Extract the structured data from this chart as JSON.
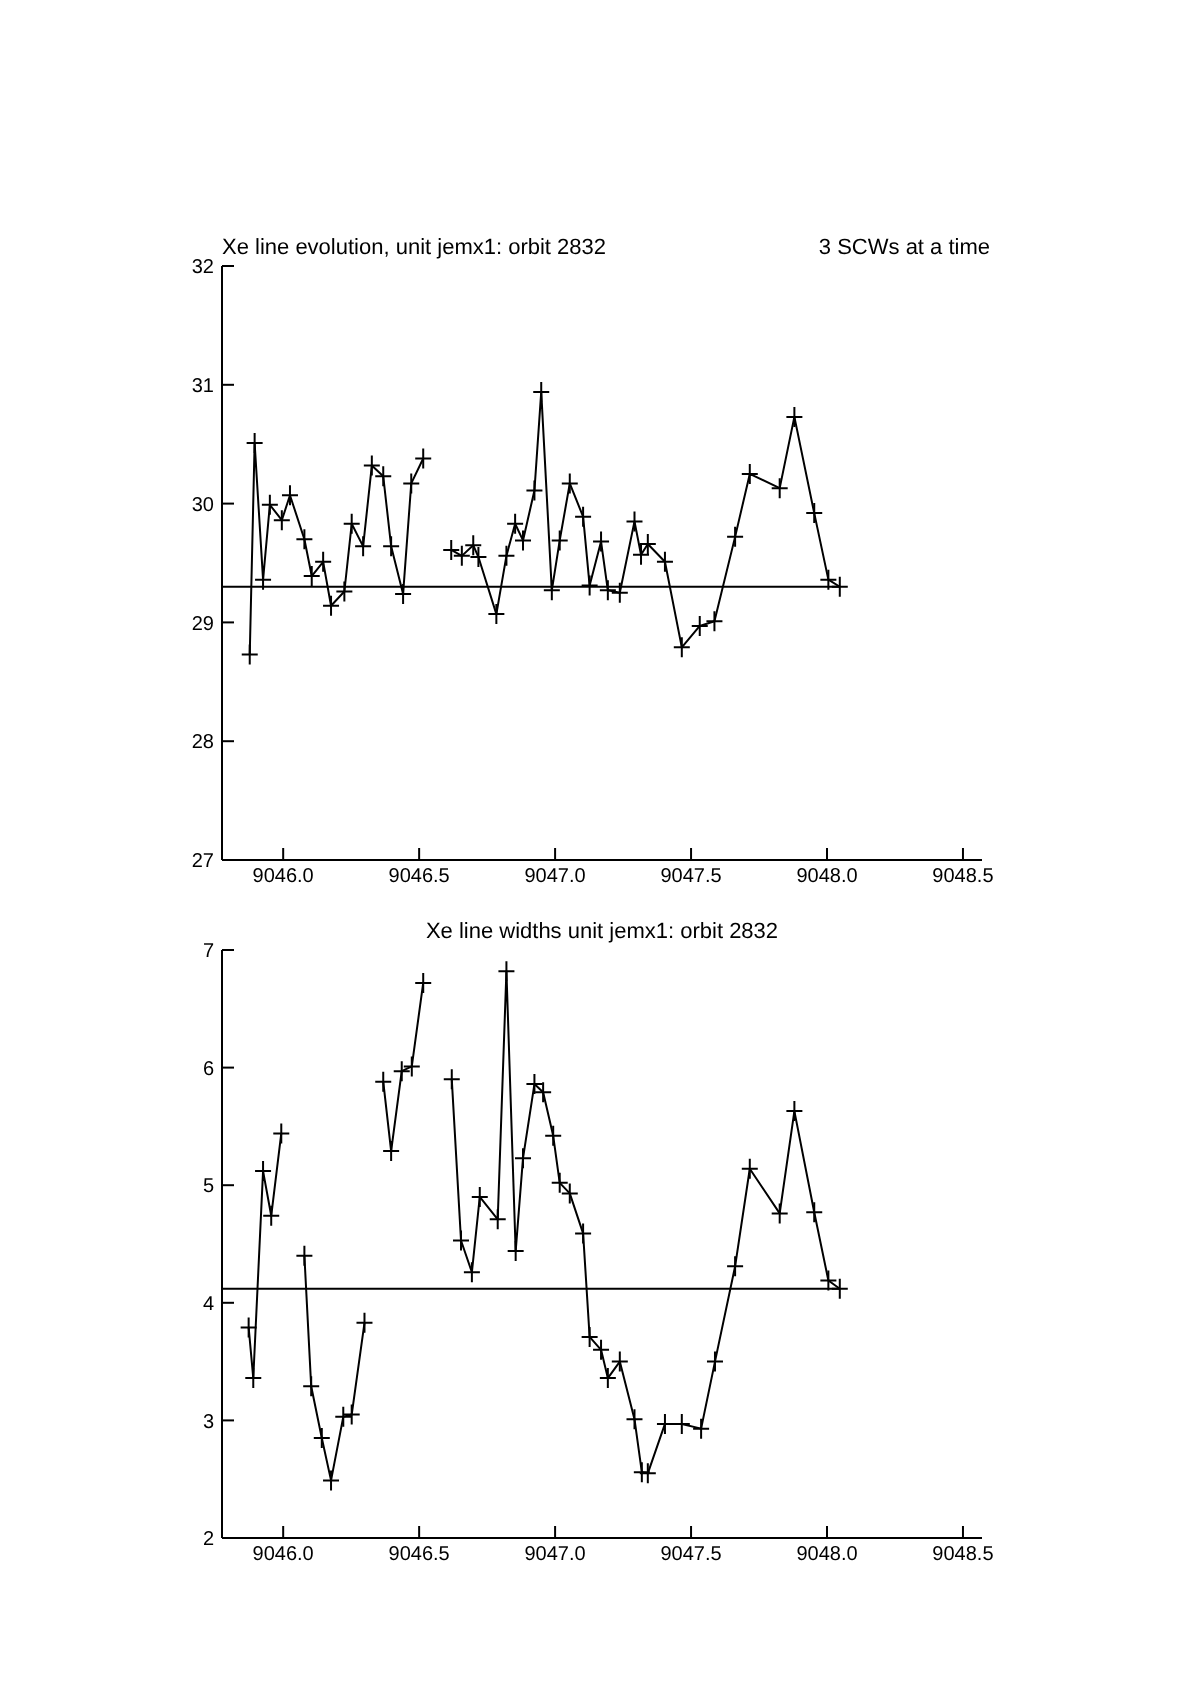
{
  "chart_data": [
    {
      "type": "line",
      "title": "Xe line evolution, unit jemx1: orbit 2832",
      "subtitle": "3 SCWs at a time",
      "xlim": [
        9045.775,
        9048.57
      ],
      "xticks": [
        {
          "value": 9046,
          "label": "9046.0"
        },
        {
          "value": 9046.5,
          "label": "9046.5"
        },
        {
          "value": 9047,
          "label": "9047.0"
        },
        {
          "value": 9047.5,
          "label": "9047.5"
        },
        {
          "value": 9048,
          "label": "9048.0"
        },
        {
          "value": 9048.5,
          "label": "9048.5"
        }
      ],
      "ylim": [
        27,
        32
      ],
      "yticks": [
        27,
        28,
        29,
        30,
        31,
        32
      ],
      "series": [
        {
          "color": "#000000",
          "marker": "cross",
          "x": [
            9045.877,
            9045.895,
            9045.926,
            9045.951,
            9045.995,
            9046.025,
            9046.078,
            9046.105,
            9046.147,
            9046.176,
            9046.225,
            9046.252,
            9046.294,
            9046.326,
            9046.368,
            9046.397,
            9046.441,
            9046.471,
            9046.515,
            9046.57,
            9046.618,
            9046.657,
            9046.699,
            9046.718,
            9046.784,
            9046.821,
            9046.853,
            9046.882,
            9046.924,
            9046.949,
            9046.988,
            9047.017,
            9047.054,
            9047.103,
            9047.127,
            9047.169,
            9047.194,
            9047.238,
            9047.292,
            9047.316,
            9047.341,
            9047.404,
            9047.466,
            9047.532,
            9047.586,
            9047.662,
            9047.716,
            9047.826,
            9047.88,
            9047.953,
            9048.005,
            9048.047
          ],
          "values": [
            28.73,
            30.51,
            29.36,
            29.99,
            29.86,
            30.07,
            29.7,
            29.39,
            29.51,
            29.14,
            29.26,
            29.83,
            29.64,
            30.32,
            30.23,
            29.64,
            29.24,
            30.17,
            30.38,
            null,
            29.61,
            29.56,
            29.65,
            29.55,
            29.07,
            29.56,
            29.83,
            29.69,
            30.11,
            30.94,
            29.27,
            29.69,
            30.17,
            29.89,
            29.31,
            29.68,
            29.27,
            29.25,
            29.85,
            29.57,
            29.66,
            29.51,
            28.79,
            28.97,
            29.01,
            29.72,
            30.25,
            30.13,
            30.73,
            29.92,
            29.36,
            29.3
          ]
        },
        {
          "color": "#000000",
          "marker": "none",
          "x": [
            9045.775,
            9048.047
          ],
          "values": [
            29.3,
            29.3
          ]
        }
      ]
    },
    {
      "type": "line",
      "title": "Xe line widths unit jemx1: orbit 2832",
      "xlim": [
        9045.775,
        9048.57
      ],
      "xticks": [
        {
          "value": 9046,
          "label": "9046.0"
        },
        {
          "value": 9046.5,
          "label": "9046.5"
        },
        {
          "value": 9047,
          "label": "9047.0"
        },
        {
          "value": 9047.5,
          "label": "9047.5"
        },
        {
          "value": 9048,
          "label": "9048.0"
        },
        {
          "value": 9048.5,
          "label": "9048.5"
        }
      ],
      "ylim": [
        2,
        7
      ],
      "yticks": [
        2,
        3,
        4,
        5,
        6,
        7
      ],
      "series": [
        {
          "color": "#000000",
          "marker": "cross",
          "x": [
            9045.873,
            9045.89,
            9045.926,
            9045.956,
            9045.993,
            9046.02,
            9046.078,
            9046.103,
            9046.142,
            9046.176,
            9046.221,
            9046.252,
            9046.299,
            9046.33,
            9046.368,
            9046.397,
            9046.436,
            9046.473,
            9046.515,
            9046.56,
            9046.62,
            9046.654,
            9046.694,
            9046.723,
            9046.789,
            9046.821,
            9046.855,
            9046.882,
            9046.924,
            9046.956,
            9046.993,
            9047.017,
            9047.054,
            9047.103,
            9047.127,
            9047.169,
            9047.194,
            9047.238,
            9047.292,
            9047.319,
            9047.341,
            9047.404,
            9047.466,
            9047.537,
            9047.588,
            9047.662,
            9047.716,
            9047.826,
            9047.88,
            9047.953,
            9048.005,
            9048.047
          ],
          "values": [
            3.79,
            3.36,
            5.12,
            4.74,
            5.44,
            null,
            4.4,
            3.29,
            2.85,
            2.49,
            3.03,
            3.05,
            3.83,
            null,
            5.88,
            5.29,
            5.97,
            6.01,
            6.72,
            null,
            5.9,
            4.53,
            4.26,
            4.9,
            4.71,
            6.82,
            4.44,
            5.23,
            5.86,
            5.79,
            5.42,
            5.02,
            4.93,
            4.59,
            3.71,
            3.6,
            3.36,
            3.5,
            3.01,
            2.56,
            2.55,
            2.97,
            2.97,
            2.93,
            3.5,
            4.31,
            5.14,
            4.76,
            5.63,
            4.77,
            4.19,
            4.12
          ]
        },
        {
          "color": "#000000",
          "marker": "none",
          "x": [
            9045.775,
            9048.047
          ],
          "values": [
            4.12,
            4.12
          ]
        }
      ]
    }
  ]
}
